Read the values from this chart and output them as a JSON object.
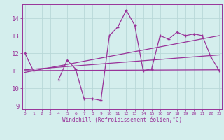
{
  "xlabel": "Windchill (Refroidissement éolien,°C)",
  "background_color": "#d4eeed",
  "grid_color": "#b8d8d8",
  "line_color": "#993399",
  "x_values": [
    0,
    1,
    2,
    3,
    4,
    5,
    6,
    7,
    8,
    9,
    10,
    11,
    12,
    13,
    14,
    15,
    16,
    17,
    18,
    19,
    20,
    21,
    22,
    23
  ],
  "series1": [
    12.0,
    11.0,
    null,
    null,
    10.5,
    11.6,
    11.1,
    9.4,
    9.4,
    9.3,
    13.0,
    13.5,
    14.45,
    13.6,
    11.0,
    11.1,
    13.0,
    12.8,
    13.2,
    13.0,
    13.1,
    13.0,
    11.8,
    11.0
  ],
  "line2_x": [
    0,
    23
  ],
  "line2_y": [
    11.0,
    11.05
  ],
  "line3_x": [
    0,
    23
  ],
  "line3_y": [
    10.9,
    13.0
  ],
  "line4_x": [
    0,
    23
  ],
  "line4_y": [
    11.05,
    11.9
  ],
  "ylim": [
    8.8,
    14.8
  ],
  "xlim": [
    -0.3,
    23.3
  ],
  "yticks": [
    9,
    10,
    11,
    12,
    13,
    14
  ],
  "xticks": [
    0,
    1,
    2,
    3,
    4,
    5,
    6,
    7,
    8,
    9,
    10,
    11,
    12,
    13,
    14,
    15,
    16,
    17,
    18,
    19,
    20,
    21,
    22,
    23
  ]
}
